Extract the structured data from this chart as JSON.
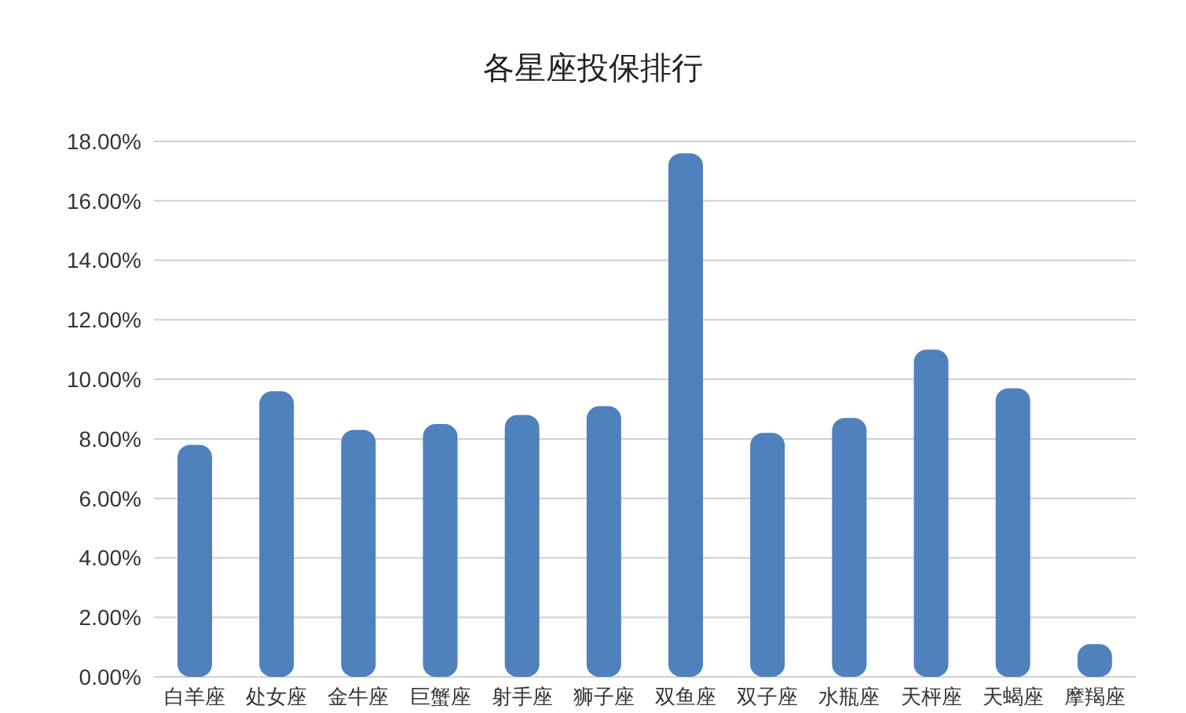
{
  "chart_data": {
    "type": "bar",
    "title": "各星座投保排行",
    "categories": [
      "白羊座",
      "处女座",
      "金牛座",
      "巨蟹座",
      "射手座",
      "狮子座",
      "双鱼座",
      "双子座",
      "水瓶座",
      "天枰座",
      "天蝎座",
      "摩羯座"
    ],
    "values": [
      7.8,
      9.6,
      8.3,
      8.5,
      8.8,
      9.1,
      17.6,
      8.2,
      8.7,
      11.0,
      9.7,
      1.1
    ],
    "color": "#4f81bd",
    "ylim": [
      0,
      18
    ],
    "yticks": [
      {
        "value": 0,
        "label": "0.00%"
      },
      {
        "value": 2,
        "label": "2.00%"
      },
      {
        "value": 4,
        "label": "4.00%"
      },
      {
        "value": 6,
        "label": "6.00%"
      },
      {
        "value": 8,
        "label": "8.00%"
      },
      {
        "value": 10,
        "label": "10.00%"
      },
      {
        "value": 12,
        "label": "12.00%"
      },
      {
        "value": 14,
        "label": "14.00%"
      },
      {
        "value": 16,
        "label": "16.00%"
      },
      {
        "value": 18,
        "label": "18.00%"
      }
    ],
    "grid": "y"
  }
}
